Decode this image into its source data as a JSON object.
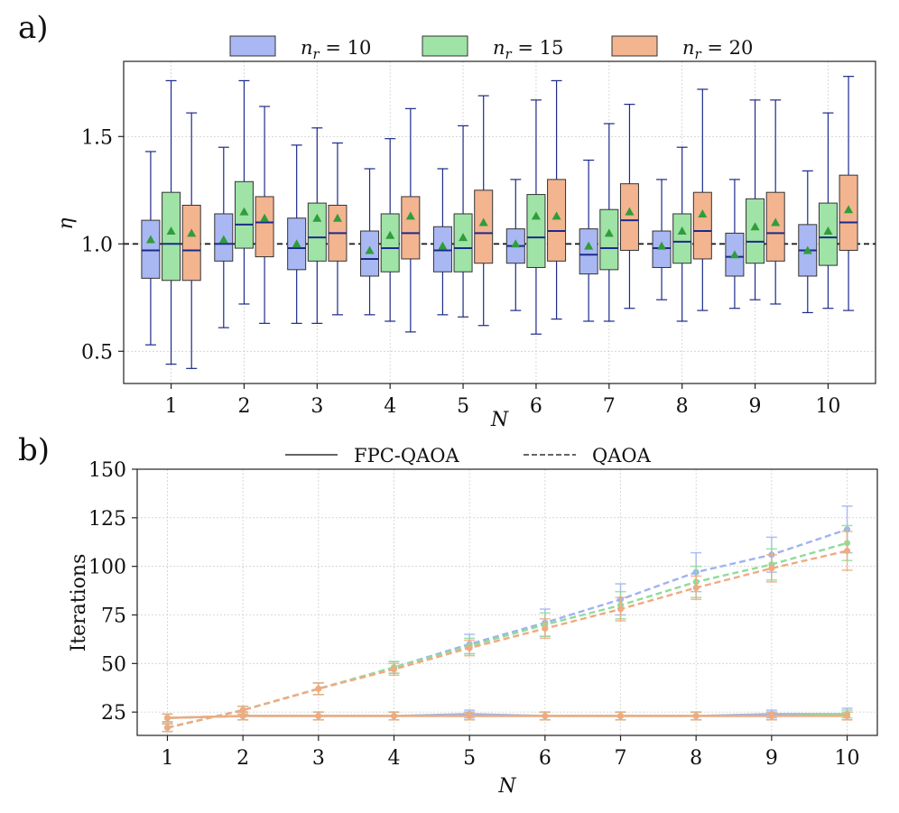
{
  "panels": {
    "a": {
      "label": "a)"
    },
    "b": {
      "label": "b)"
    }
  },
  "colors": {
    "nr10_fill": "#a9b8f2",
    "nr15_fill": "#9fe3a6",
    "nr20_fill": "#f3b490",
    "nr10_line": "#9fb3f0",
    "nr15_line": "#8fdc9a",
    "nr20_line": "#f0aa80",
    "whisker": "#1c2a8a",
    "median": "#1c2a8a",
    "mean_marker": "#2f9d3a",
    "reference": "#222222"
  },
  "chart_data": [
    {
      "type": "box",
      "panel": "a",
      "title": "",
      "xlabel": "N",
      "ylabel": "η",
      "ylim": [
        0.35,
        1.85
      ],
      "xlim": [
        0.35,
        10.65
      ],
      "yticks": [
        "0.5",
        "1.0",
        "1.5"
      ],
      "xticks": [
        "1",
        "2",
        "3",
        "4",
        "5",
        "6",
        "7",
        "8",
        "9",
        "10"
      ],
      "reference_line": 1.0,
      "grid": true,
      "legend_position": "top",
      "legend": [
        {
          "italic": "n",
          "sub": "r",
          "rest": " = 10"
        },
        {
          "italic": "n",
          "sub": "r",
          "rest": " = 15"
        },
        {
          "italic": "n",
          "sub": "r",
          "rest": " = 20"
        }
      ],
      "series": [
        {
          "name": "n_r = 10",
          "boxes": [
            {
              "x": 1,
              "min": 0.53,
              "q1": 0.84,
              "median": 0.97,
              "q3": 1.11,
              "max": 1.43,
              "mean": 1.02
            },
            {
              "x": 2,
              "min": 0.61,
              "q1": 0.92,
              "median": 1.0,
              "q3": 1.14,
              "max": 1.45,
              "mean": 1.02
            },
            {
              "x": 3,
              "min": 0.63,
              "q1": 0.88,
              "median": 0.98,
              "q3": 1.12,
              "max": 1.46,
              "mean": 1.0
            },
            {
              "x": 4,
              "min": 0.67,
              "q1": 0.85,
              "median": 0.93,
              "q3": 1.06,
              "max": 1.35,
              "mean": 0.97
            },
            {
              "x": 5,
              "min": 0.67,
              "q1": 0.87,
              "median": 0.97,
              "q3": 1.08,
              "max": 1.35,
              "mean": 0.99
            },
            {
              "x": 6,
              "min": 0.69,
              "q1": 0.91,
              "median": 0.99,
              "q3": 1.07,
              "max": 1.3,
              "mean": 1.0
            },
            {
              "x": 7,
              "min": 0.64,
              "q1": 0.86,
              "median": 0.95,
              "q3": 1.07,
              "max": 1.39,
              "mean": 0.99
            },
            {
              "x": 8,
              "min": 0.74,
              "q1": 0.89,
              "median": 0.98,
              "q3": 1.06,
              "max": 1.3,
              "mean": 0.99
            },
            {
              "x": 9,
              "min": 0.7,
              "q1": 0.85,
              "median": 0.94,
              "q3": 1.05,
              "max": 1.3,
              "mean": 0.95
            },
            {
              "x": 10,
              "min": 0.68,
              "q1": 0.85,
              "median": 0.97,
              "q3": 1.09,
              "max": 1.34,
              "mean": 0.97
            }
          ]
        },
        {
          "name": "n_r = 15",
          "boxes": [
            {
              "x": 1,
              "min": 0.44,
              "q1": 0.83,
              "median": 1.0,
              "q3": 1.24,
              "max": 1.76,
              "mean": 1.06
            },
            {
              "x": 2,
              "min": 0.72,
              "q1": 0.98,
              "median": 1.09,
              "q3": 1.29,
              "max": 1.76,
              "mean": 1.15
            },
            {
              "x": 3,
              "min": 0.63,
              "q1": 0.92,
              "median": 1.03,
              "q3": 1.19,
              "max": 1.54,
              "mean": 1.12
            },
            {
              "x": 4,
              "min": 0.64,
              "q1": 0.87,
              "median": 0.98,
              "q3": 1.14,
              "max": 1.49,
              "mean": 1.04
            },
            {
              "x": 5,
              "min": 0.66,
              "q1": 0.87,
              "median": 0.98,
              "q3": 1.14,
              "max": 1.55,
              "mean": 1.03
            },
            {
              "x": 6,
              "min": 0.58,
              "q1": 0.89,
              "median": 1.03,
              "q3": 1.23,
              "max": 1.67,
              "mean": 1.13
            },
            {
              "x": 7,
              "min": 0.64,
              "q1": 0.88,
              "median": 0.98,
              "q3": 1.16,
              "max": 1.56,
              "mean": 1.05
            },
            {
              "x": 8,
              "min": 0.64,
              "q1": 0.91,
              "median": 1.01,
              "q3": 1.14,
              "max": 1.45,
              "mean": 1.06
            },
            {
              "x": 9,
              "min": 0.74,
              "q1": 0.91,
              "median": 1.01,
              "q3": 1.21,
              "max": 1.67,
              "mean": 1.08
            },
            {
              "x": 10,
              "min": 0.7,
              "q1": 0.9,
              "median": 1.03,
              "q3": 1.19,
              "max": 1.61,
              "mean": 1.06
            }
          ]
        },
        {
          "name": "n_r = 20",
          "boxes": [
            {
              "x": 1,
              "min": 0.42,
              "q1": 0.83,
              "median": 0.97,
              "q3": 1.18,
              "max": 1.61,
              "mean": 1.05
            },
            {
              "x": 2,
              "min": 0.63,
              "q1": 0.94,
              "median": 1.1,
              "q3": 1.22,
              "max": 1.64,
              "mean": 1.12
            },
            {
              "x": 3,
              "min": 0.67,
              "q1": 0.92,
              "median": 1.05,
              "q3": 1.18,
              "max": 1.47,
              "mean": 1.12
            },
            {
              "x": 4,
              "min": 0.59,
              "q1": 0.93,
              "median": 1.05,
              "q3": 1.22,
              "max": 1.63,
              "mean": 1.13
            },
            {
              "x": 5,
              "min": 0.62,
              "q1": 0.91,
              "median": 1.05,
              "q3": 1.25,
              "max": 1.69,
              "mean": 1.1
            },
            {
              "x": 6,
              "min": 0.65,
              "q1": 0.92,
              "median": 1.06,
              "q3": 1.3,
              "max": 1.76,
              "mean": 1.13
            },
            {
              "x": 7,
              "min": 0.7,
              "q1": 0.97,
              "median": 1.11,
              "q3": 1.28,
              "max": 1.65,
              "mean": 1.15
            },
            {
              "x": 8,
              "min": 0.69,
              "q1": 0.93,
              "median": 1.06,
              "q3": 1.24,
              "max": 1.72,
              "mean": 1.14
            },
            {
              "x": 9,
              "min": 0.72,
              "q1": 0.92,
              "median": 1.05,
              "q3": 1.24,
              "max": 1.67,
              "mean": 1.1
            },
            {
              "x": 10,
              "min": 0.69,
              "q1": 0.97,
              "median": 1.1,
              "q3": 1.32,
              "max": 1.78,
              "mean": 1.16
            }
          ]
        }
      ]
    },
    {
      "type": "line",
      "panel": "b",
      "title": "",
      "xlabel": "N",
      "ylabel": "Iterations",
      "ylim": [
        13,
        150
      ],
      "xlim": [
        0.6,
        10.4
      ],
      "yticks": [
        "25",
        "50",
        "75",
        "100",
        "125",
        "150"
      ],
      "xticks": [
        "1",
        "2",
        "3",
        "4",
        "5",
        "6",
        "7",
        "8",
        "9",
        "10"
      ],
      "x": [
        1,
        2,
        3,
        4,
        5,
        6,
        7,
        8,
        9,
        10
      ],
      "grid": true,
      "legend_position": "top",
      "legend": [
        {
          "label": "FPC-QAOA",
          "style": "solid"
        },
        {
          "label": "QAOA",
          "style": "dashed"
        }
      ],
      "series": [
        {
          "name": "FPC-QAOA n_r = 10",
          "method": "FPC-QAOA",
          "nr": 10,
          "values": [
            22,
            23,
            23,
            23,
            24,
            23,
            23,
            23,
            24,
            24
          ],
          "err": [
            2,
            2,
            2,
            2,
            2,
            2,
            2,
            2,
            2,
            3
          ]
        },
        {
          "name": "FPC-QAOA n_r = 15",
          "method": "FPC-QAOA",
          "nr": 15,
          "values": [
            22,
            23,
            23,
            23,
            23,
            23,
            23,
            23,
            23,
            24
          ],
          "err": [
            2,
            2,
            2,
            2,
            2,
            2,
            2,
            2,
            2,
            2
          ]
        },
        {
          "name": "FPC-QAOA n_r = 20",
          "method": "FPC-QAOA",
          "nr": 20,
          "values": [
            22,
            23,
            23,
            23,
            23,
            23,
            23,
            23,
            23,
            23
          ],
          "err": [
            2,
            2,
            2,
            2,
            2,
            2,
            2,
            2,
            2,
            2
          ]
        },
        {
          "name": "QAOA n_r = 10",
          "method": "QAOA",
          "nr": 10,
          "values": [
            17,
            26,
            37,
            48,
            60,
            71,
            83,
            97,
            106,
            119
          ],
          "err": [
            2,
            2,
            3,
            3,
            5,
            7,
            8,
            10,
            9,
            12
          ]
        },
        {
          "name": "QAOA n_r = 15",
          "method": "QAOA",
          "nr": 15,
          "values": [
            17,
            26,
            37,
            48,
            59,
            70,
            80,
            92,
            101,
            112
          ],
          "err": [
            2,
            2,
            3,
            3,
            4,
            6,
            7,
            8,
            8,
            9
          ]
        },
        {
          "name": "QAOA n_r = 20",
          "method": "QAOA",
          "nr": 20,
          "values": [
            17,
            26,
            37,
            47,
            58,
            68,
            78,
            89,
            99,
            108
          ],
          "err": [
            2,
            2,
            3,
            3,
            4,
            5,
            6,
            6,
            7,
            10
          ]
        }
      ]
    }
  ]
}
